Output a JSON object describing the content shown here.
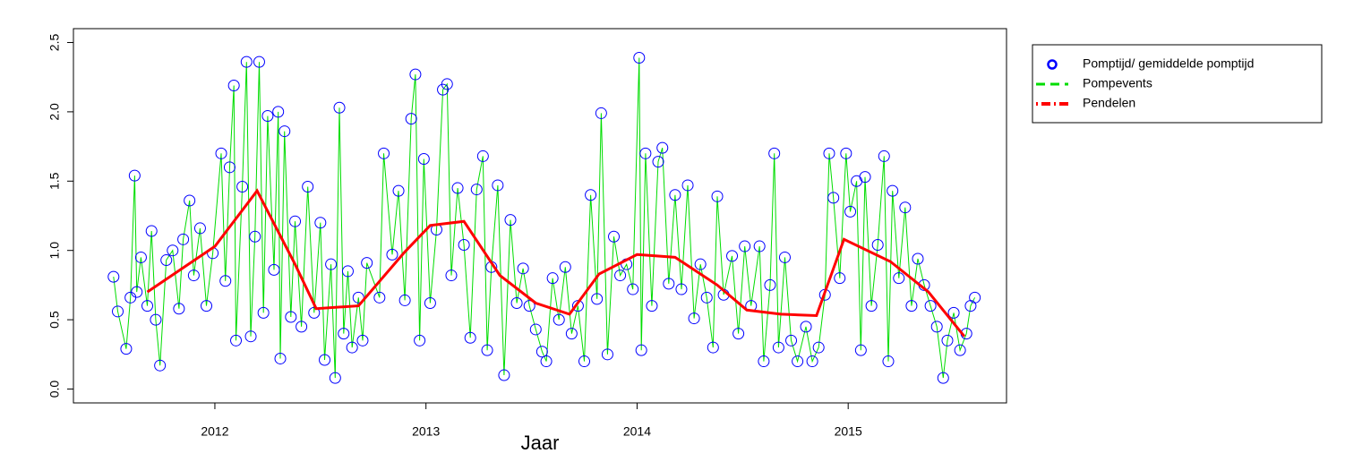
{
  "chart_data": {
    "type": "scatter",
    "xlabel": "Jaar",
    "xlim": [
      2011.33,
      2015.75
    ],
    "xticks": [
      2012,
      2013,
      2014,
      2015
    ],
    "ylim": [
      -0.1,
      2.6
    ],
    "yticks": [
      {
        "value": 0,
        "label": "0.0"
      },
      0.5,
      {
        "value": 1,
        "label": "1.0"
      },
      1.5,
      {
        "value": 2,
        "label": "2.0"
      },
      2.5
    ],
    "legend": "top-right",
    "series": [
      {
        "name": "Pomptijd/ gemiddelde pomptijd",
        "color": "#0000ff",
        "x": [
          2011.52,
          2011.54,
          2011.58,
          2011.6,
          2011.62,
          2011.63,
          2011.65,
          2011.68,
          2011.7,
          2011.72,
          2011.74,
          2011.77,
          2011.8,
          2011.83,
          2011.85,
          2011.88,
          2011.9,
          2011.93,
          2011.96,
          2011.99,
          2012.03,
          2012.05,
          2012.07,
          2012.09,
          2012.1,
          2012.13,
          2012.15,
          2012.17,
          2012.19,
          2012.21,
          2012.23,
          2012.25,
          2012.28,
          2012.3,
          2012.31,
          2012.33,
          2012.36,
          2012.38,
          2012.41,
          2012.44,
          2012.47,
          2012.5,
          2012.52,
          2012.55,
          2012.57,
          2012.59,
          2012.61,
          2012.63,
          2012.65,
          2012.68,
          2012.7,
          2012.72,
          2012.78,
          2012.8,
          2012.84,
          2012.87,
          2012.9,
          2012.93,
          2012.95,
          2012.97,
          2012.99,
          2013.02,
          2013.05,
          2013.08,
          2013.1,
          2013.12,
          2013.15,
          2013.18,
          2013.21,
          2013.24,
          2013.27,
          2013.29,
          2013.31,
          2013.34,
          2013.37,
          2013.4,
          2013.43,
          2013.46,
          2013.49,
          2013.52,
          2013.55,
          2013.57,
          2013.6,
          2013.63,
          2013.66,
          2013.69,
          2013.72,
          2013.75,
          2013.78,
          2013.81,
          2013.83,
          2013.86,
          2013.89,
          2013.92,
          2013.95,
          2013.98,
          2014.01,
          2014.02,
          2014.04,
          2014.07,
          2014.1,
          2014.12,
          2014.15,
          2014.18,
          2014.21,
          2014.24,
          2014.27,
          2014.3,
          2014.33,
          2014.36,
          2014.38,
          2014.41,
          2014.45,
          2014.48,
          2014.51,
          2014.54,
          2014.58,
          2014.6,
          2014.63,
          2014.65,
          2014.67,
          2014.7,
          2014.73,
          2014.76,
          2014.8,
          2014.83,
          2014.86,
          2014.89,
          2014.91,
          2014.93,
          2014.96,
          2014.99,
          2015.01,
          2015.04,
          2015.06,
          2015.08,
          2015.11,
          2015.14,
          2015.17,
          2015.19,
          2015.21,
          2015.24,
          2015.27,
          2015.3,
          2015.33,
          2015.36,
          2015.39,
          2015.42,
          2015.45,
          2015.47,
          2015.5,
          2015.53,
          2015.56,
          2015.58,
          2015.6
        ],
        "values": [
          0.81,
          0.56,
          0.29,
          0.66,
          1.54,
          0.7,
          0.95,
          0.6,
          1.14,
          0.5,
          0.17,
          0.93,
          1.0,
          0.58,
          1.08,
          1.36,
          0.82,
          1.16,
          0.6,
          0.98,
          1.7,
          0.78,
          1.6,
          2.19,
          0.35,
          1.46,
          2.36,
          0.38,
          1.1,
          2.36,
          0.55,
          1.97,
          0.86,
          2.0,
          0.22,
          1.86,
          0.52,
          1.21,
          0.45,
          1.46,
          0.55,
          1.2,
          0.21,
          0.9,
          0.08,
          2.03,
          0.4,
          0.85,
          0.3,
          0.66,
          0.35,
          0.91,
          0.66,
          1.7,
          0.97,
          1.43,
          0.64,
          1.95,
          2.27,
          0.35,
          1.66,
          0.62,
          1.15,
          2.16,
          2.2,
          0.82,
          1.45,
          1.04,
          0.37,
          1.44,
          1.68,
          0.28,
          0.88,
          1.47,
          0.1,
          1.22,
          0.62,
          0.87,
          0.6,
          0.43,
          0.27,
          0.2,
          0.8,
          0.5,
          0.88,
          0.4,
          0.6,
          0.2,
          1.4,
          0.65,
          1.99,
          0.25,
          1.1,
          0.82,
          0.9,
          0.72,
          2.39,
          0.28,
          1.7,
          0.6,
          1.64,
          1.74,
          0.76,
          1.4,
          0.72,
          1.47,
          0.51,
          0.9,
          0.66,
          0.3,
          1.39,
          0.68,
          0.96,
          0.4,
          1.03,
          0.6,
          1.03,
          0.2,
          0.75,
          1.7,
          0.3,
          0.95,
          0.35,
          0.2,
          0.45,
          0.2,
          0.3,
          0.68,
          1.7,
          1.38,
          0.8,
          1.7,
          1.28,
          1.5,
          0.28,
          1.53,
          0.6,
          1.04,
          1.68,
          0.2,
          1.43,
          0.8,
          1.31,
          0.6,
          0.94,
          0.75,
          0.6,
          0.45,
          0.08,
          0.35,
          0.55,
          0.28,
          0.4,
          0.6,
          0.66
        ]
      },
      {
        "name": "Pompevents",
        "color": "#00dd00"
      },
      {
        "name": "Pendelen",
        "color": "#ff0000",
        "x": [
          2011.68,
          2012.0,
          2012.2,
          2012.38,
          2012.48,
          2012.68,
          2012.9,
          2013.02,
          2013.18,
          2013.35,
          2013.52,
          2013.68,
          2013.82,
          2014.0,
          2014.18,
          2014.38,
          2014.52,
          2014.68,
          2014.85,
          2014.98,
          2015.2,
          2015.38,
          2015.55
        ],
        "values": [
          0.7,
          1.03,
          1.43,
          0.9,
          0.58,
          0.6,
          0.99,
          1.18,
          1.21,
          0.82,
          0.62,
          0.54,
          0.83,
          0.97,
          0.95,
          0.75,
          0.57,
          0.54,
          0.53,
          1.08,
          0.92,
          0.7,
          0.38
        ]
      }
    ]
  }
}
